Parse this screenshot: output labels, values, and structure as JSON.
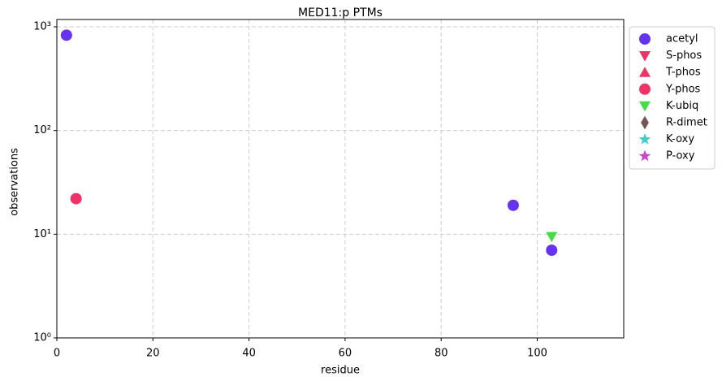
{
  "chart_data": {
    "type": "scatter",
    "title": "MED11:p PTMs",
    "x_label": "residue",
    "y_label": "observations",
    "xlim": [
      0,
      118
    ],
    "xticks": [
      0,
      20,
      40,
      60,
      80,
      100
    ],
    "ylim": [
      1,
      1176
    ],
    "y_scale": "log",
    "yticks": [
      {
        "value": 1,
        "label": "10⁰"
      },
      {
        "value": 10,
        "label": "10¹"
      },
      {
        "value": 100,
        "label": "10²"
      },
      {
        "value": 1000,
        "label": "10³"
      }
    ],
    "grid": true,
    "legend": "outside right",
    "series": [
      {
        "name": "acetyl",
        "color": "#6633ee",
        "marker": "circle",
        "x": [
          2,
          95,
          103
        ],
        "values": [
          830,
          19,
          7
        ]
      },
      {
        "name": "S-phos",
        "color": "#ee3366",
        "marker": "triangle-down",
        "x": [],
        "values": []
      },
      {
        "name": "T-phos",
        "color": "#ee3366",
        "marker": "triangle-up",
        "x": [],
        "values": []
      },
      {
        "name": "Y-phos",
        "color": "#ee3366",
        "marker": "circle",
        "x": [
          4
        ],
        "values": [
          22
        ]
      },
      {
        "name": "K-ubiq",
        "color": "#44dd44",
        "marker": "triangle-down",
        "x": [
          103
        ],
        "values": [
          9.5
        ]
      },
      {
        "name": "R-dimet",
        "color": "#775555",
        "marker": "diamond",
        "x": [],
        "values": []
      },
      {
        "name": "K-oxy",
        "color": "#44cccc",
        "marker": "star",
        "x": [],
        "values": []
      },
      {
        "name": "P-oxy",
        "color": "#cc44cc",
        "marker": "star",
        "x": [],
        "values": []
      }
    ]
  }
}
